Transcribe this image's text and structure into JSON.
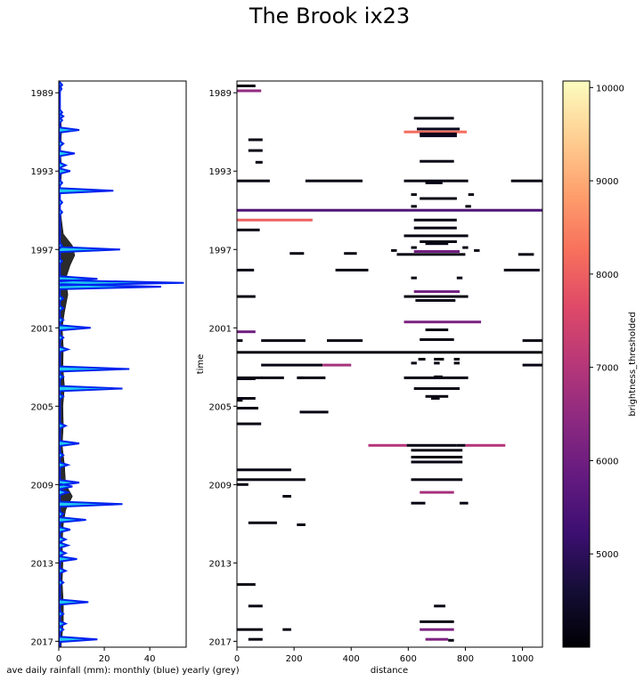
{
  "figure": {
    "title": "The Brook ix23"
  },
  "chart_data": [
    {
      "type": "area",
      "xlabel": "ave daily rainfall (mm): monthly (blue) yearly (grey)",
      "xlim": [
        0,
        56
      ],
      "xticks": [
        0,
        20,
        40
      ],
      "ylim": [
        1988.4,
        2017.3
      ],
      "yticks": [
        1989,
        1993,
        1997,
        2001,
        2005,
        2009,
        2013,
        2017
      ],
      "colors": {
        "monthly_fill": "#1ec8f0",
        "monthly_line": "#0022ee",
        "yearly_fill": "#2b2b2b"
      },
      "yearly_series": {
        "name": "yearly (grey)",
        "points": [
          [
            1988.4,
            0.5
          ],
          [
            1989.5,
            0.5
          ],
          [
            1990,
            0.8
          ],
          [
            1991,
            1.2
          ],
          [
            1992,
            0.8
          ],
          [
            1993,
            1.3
          ],
          [
            1994,
            0.6
          ],
          [
            1995,
            0.7
          ],
          [
            1995.5,
            1.2
          ],
          [
            1996.2,
            2
          ],
          [
            1996.8,
            6
          ],
          [
            1997.3,
            7
          ],
          [
            1997.8,
            5
          ],
          [
            1998.5,
            3
          ],
          [
            1999.3,
            4
          ],
          [
            2000.2,
            2.5
          ],
          [
            2001,
            1.5
          ],
          [
            2002,
            2
          ],
          [
            2003,
            1.8
          ],
          [
            2004,
            2.5
          ],
          [
            2005,
            1.8
          ],
          [
            2006,
            2
          ],
          [
            2007,
            1.5
          ],
          [
            2008,
            2.5
          ],
          [
            2009,
            3
          ],
          [
            2009.6,
            6
          ],
          [
            2010.3,
            3
          ],
          [
            2011,
            2
          ],
          [
            2012,
            1.5
          ],
          [
            2013,
            1.8
          ],
          [
            2014,
            1.5
          ],
          [
            2015,
            2
          ],
          [
            2016,
            2
          ],
          [
            2016.7,
            1.5
          ],
          [
            2017.3,
            1
          ]
        ]
      },
      "monthly_series": {
        "name": "monthly (blue)",
        "spikes": [
          [
            1988.6,
            1.5
          ],
          [
            1988.8,
            1.2
          ],
          [
            1990.0,
            1.5
          ],
          [
            1990.2,
            2
          ],
          [
            1990.4,
            1.5
          ],
          [
            1990.9,
            9
          ],
          [
            1991.6,
            2
          ],
          [
            1992.1,
            7
          ],
          [
            1992.7,
            3
          ],
          [
            1993.0,
            5
          ],
          [
            1993.6,
            1.5
          ],
          [
            1994.0,
            24
          ],
          [
            1994.6,
            1.5
          ],
          [
            1995.1,
            1.5
          ],
          [
            1996.8,
            1.5
          ],
          [
            1997.0,
            27
          ],
          [
            1997.6,
            1.5
          ],
          [
            1998.5,
            17
          ],
          [
            1998.7,
            55
          ],
          [
            1998.9,
            45
          ],
          [
            1999.5,
            2
          ],
          [
            2000.0,
            2
          ],
          [
            2000.6,
            2
          ],
          [
            2001.0,
            14
          ],
          [
            2001.5,
            2
          ],
          [
            2002.1,
            4
          ],
          [
            2003.1,
            31
          ],
          [
            2003.5,
            2
          ],
          [
            2004.1,
            28
          ],
          [
            2004.5,
            2
          ],
          [
            2006.0,
            3
          ],
          [
            2006.9,
            9
          ],
          [
            2007.5,
            2
          ],
          [
            2008.0,
            4
          ],
          [
            2008.9,
            9
          ],
          [
            2009.1,
            6
          ],
          [
            2009.4,
            4
          ],
          [
            2010.0,
            28
          ],
          [
            2010.5,
            2
          ],
          [
            2010.8,
            12
          ],
          [
            2011.3,
            5
          ],
          [
            2011.8,
            3
          ],
          [
            2012.1,
            4
          ],
          [
            2012.5,
            3
          ],
          [
            2012.8,
            8
          ],
          [
            2013.4,
            3
          ],
          [
            2014.0,
            2
          ],
          [
            2015.0,
            13
          ],
          [
            2015.6,
            2
          ],
          [
            2016.1,
            3
          ],
          [
            2016.4,
            2
          ],
          [
            2016.9,
            17
          ]
        ]
      }
    },
    {
      "type": "heatmap",
      "xlabel": "distance",
      "ylabel": "time",
      "xlim": [
        0,
        1070
      ],
      "xticks": [
        0,
        200,
        400,
        600,
        800,
        1000
      ],
      "ylim": [
        1988.4,
        2017.3
      ],
      "yticks": [
        1989,
        1993,
        1997,
        2001,
        2005,
        2009,
        2013,
        2017
      ],
      "colorbar": {
        "label": "brightness_thresholded",
        "range": [
          4000,
          10070
        ],
        "ticks": [
          5000,
          6000,
          7000,
          8000,
          9000,
          10000
        ],
        "colormap": "magma"
      },
      "segments": [
        [
          1988.65,
          0,
          65,
          4200
        ],
        [
          1988.9,
          0,
          85,
          6500
        ],
        [
          1990.3,
          620,
          760,
          4200
        ],
        [
          1990.85,
          630,
          780,
          4300
        ],
        [
          1991.0,
          585,
          805,
          8200
        ],
        [
          1991.1,
          640,
          770,
          4300
        ],
        [
          1991.2,
          640,
          770,
          4300
        ],
        [
          1991.4,
          40,
          90,
          4200
        ],
        [
          1991.95,
          40,
          90,
          4200
        ],
        [
          1992.5,
          640,
          760,
          4200
        ],
        [
          1992.55,
          65,
          90,
          4200
        ],
        [
          1993.5,
          0,
          115,
          4200
        ],
        [
          1993.5,
          240,
          440,
          4200
        ],
        [
          1993.5,
          585,
          810,
          4200
        ],
        [
          1993.5,
          960,
          1070,
          4200
        ],
        [
          1993.6,
          660,
          720,
          4200
        ],
        [
          1994.2,
          610,
          630,
          4200
        ],
        [
          1994.2,
          810,
          830,
          4200
        ],
        [
          1994.4,
          640,
          770,
          4200
        ],
        [
          1994.8,
          610,
          630,
          4200
        ],
        [
          1994.8,
          800,
          820,
          4200
        ],
        [
          1995.0,
          0,
          1070,
          5500
        ],
        [
          1995.5,
          0,
          265,
          8000
        ],
        [
          1995.5,
          620,
          770,
          4200
        ],
        [
          1995.9,
          620,
          770,
          4200
        ],
        [
          1996.0,
          0,
          80,
          4200
        ],
        [
          1996.3,
          585,
          810,
          4200
        ],
        [
          1996.6,
          640,
          770,
          4200
        ],
        [
          1996.7,
          660,
          740,
          4200
        ],
        [
          1996.9,
          610,
          630,
          4200
        ],
        [
          1996.9,
          790,
          810,
          4200
        ],
        [
          1997.05,
          540,
          560,
          4200
        ],
        [
          1997.05,
          830,
          850,
          4200
        ],
        [
          1997.1,
          620,
          780,
          6000
        ],
        [
          1997.2,
          185,
          235,
          4200
        ],
        [
          1997.2,
          375,
          420,
          4200
        ],
        [
          1997.25,
          560,
          800,
          4200
        ],
        [
          1997.25,
          985,
          1040,
          4200
        ],
        [
          1998.05,
          0,
          60,
          4200
        ],
        [
          1998.05,
          345,
          460,
          4200
        ],
        [
          1998.05,
          935,
          1060,
          4200
        ],
        [
          1998.45,
          610,
          630,
          4200
        ],
        [
          1998.45,
          770,
          790,
          4200
        ],
        [
          1999.15,
          620,
          780,
          6000
        ],
        [
          1999.4,
          0,
          65,
          4200
        ],
        [
          1999.4,
          585,
          810,
          4200
        ],
        [
          1999.6,
          625,
          765,
          4200
        ],
        [
          2000.7,
          585,
          855,
          6200
        ],
        [
          2001.1,
          660,
          740,
          4200
        ],
        [
          2001.2,
          0,
          65,
          6000
        ],
        [
          2001.6,
          640,
          760,
          4200
        ],
        [
          2001.65,
          0,
          20,
          4200
        ],
        [
          2001.65,
          85,
          240,
          4200
        ],
        [
          2001.65,
          315,
          440,
          4200
        ],
        [
          2001.65,
          1000,
          1070,
          4200
        ],
        [
          2002.25,
          0,
          1070,
          4100
        ],
        [
          2002.6,
          635,
          660,
          4200
        ],
        [
          2002.6,
          690,
          725,
          4200
        ],
        [
          2002.6,
          760,
          780,
          4200
        ],
        [
          2002.8,
          610,
          630,
          4200
        ],
        [
          2002.8,
          690,
          710,
          4200
        ],
        [
          2002.8,
          760,
          780,
          4200
        ],
        [
          2002.9,
          85,
          300,
          4200
        ],
        [
          2002.9,
          300,
          400,
          6800
        ],
        [
          2002.9,
          1000,
          1070,
          4200
        ],
        [
          2003.55,
          0,
          90,
          4200
        ],
        [
          2003.55,
          85,
          165,
          4200
        ],
        [
          2003.55,
          210,
          235,
          4200
        ],
        [
          2003.55,
          215,
          310,
          4200
        ],
        [
          2003.55,
          585,
          810,
          4200
        ],
        [
          2003.5,
          690,
          720,
          4200
        ],
        [
          2003.6,
          0,
          65,
          4200
        ],
        [
          2004.1,
          620,
          780,
          4200
        ],
        [
          2004.5,
          660,
          740,
          4200
        ],
        [
          2004.6,
          0,
          65,
          4200
        ],
        [
          2004.6,
          680,
          710,
          4200
        ],
        [
          2004.7,
          0,
          20,
          4200
        ],
        [
          2005.1,
          0,
          75,
          4200
        ],
        [
          2005.3,
          220,
          320,
          4200
        ],
        [
          2005.9,
          0,
          85,
          4200
        ],
        [
          2007.0,
          460,
          595,
          7000
        ],
        [
          2007.0,
          595,
          770,
          4200
        ],
        [
          2007.0,
          770,
          800,
          4200
        ],
        [
          2007.0,
          800,
          940,
          7000
        ],
        [
          2007.25,
          610,
          790,
          4200
        ],
        [
          2007.6,
          610,
          790,
          4200
        ],
        [
          2007.85,
          610,
          790,
          4200
        ],
        [
          2008.25,
          0,
          190,
          4200
        ],
        [
          2008.75,
          0,
          240,
          4200
        ],
        [
          2008.75,
          610,
          790,
          4200
        ],
        [
          2009.0,
          0,
          40,
          4200
        ],
        [
          2009.4,
          640,
          760,
          6800
        ],
        [
          2009.6,
          160,
          190,
          4200
        ],
        [
          2009.95,
          610,
          660,
          4200
        ],
        [
          2009.95,
          780,
          810,
          4200
        ],
        [
          2010.95,
          40,
          140,
          4200
        ],
        [
          2011.05,
          210,
          240,
          4200
        ],
        [
          2014.1,
          0,
          65,
          4200
        ],
        [
          2015.2,
          40,
          90,
          4200
        ],
        [
          2015.2,
          690,
          730,
          4200
        ],
        [
          2016.0,
          640,
          760,
          4200
        ],
        [
          2016.4,
          0,
          90,
          4200
        ],
        [
          2016.4,
          160,
          190,
          4200
        ],
        [
          2016.4,
          640,
          760,
          6200
        ],
        [
          2016.9,
          40,
          90,
          4200
        ],
        [
          2016.9,
          660,
          740,
          6200
        ],
        [
          2016.95,
          740,
          760,
          4200
        ],
        [
          2017.4,
          640,
          770,
          4200
        ]
      ]
    }
  ]
}
